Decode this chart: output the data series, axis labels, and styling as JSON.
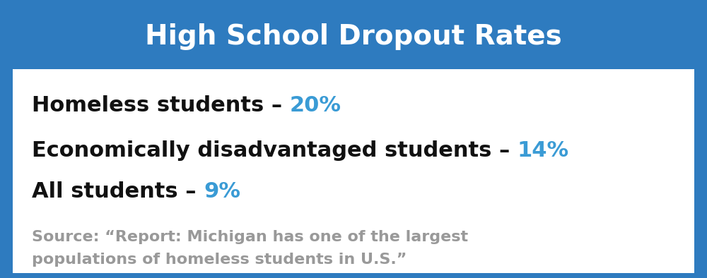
{
  "title": "High School Dropout Rates",
  "title_bg_color": "#2E7BBF",
  "title_text_color": "#FFFFFF",
  "border_color": "#2E7BBF",
  "inner_bg_color": "#FFFFFF",
  "lines": [
    {
      "label": "Homeless students – ",
      "value": "20%",
      "label_color": "#111111",
      "value_color": "#3A9BD5"
    },
    {
      "label": "Economically disadvantaged students – ",
      "value": "14%",
      "label_color": "#111111",
      "value_color": "#3A9BD5"
    },
    {
      "label": "All students – ",
      "value": "9%",
      "label_color": "#111111",
      "value_color": "#3A9BD5"
    }
  ],
  "source_line1": "Source: “Report: Michigan has one of the largest",
  "source_line2": "populations of homeless students in U.S.”",
  "source_color": "#999999",
  "label_fontsize": 22,
  "value_fontsize": 22,
  "title_fontsize": 28,
  "source_fontsize": 16,
  "figsize": [
    10.0,
    3.94
  ],
  "dpi": 100
}
